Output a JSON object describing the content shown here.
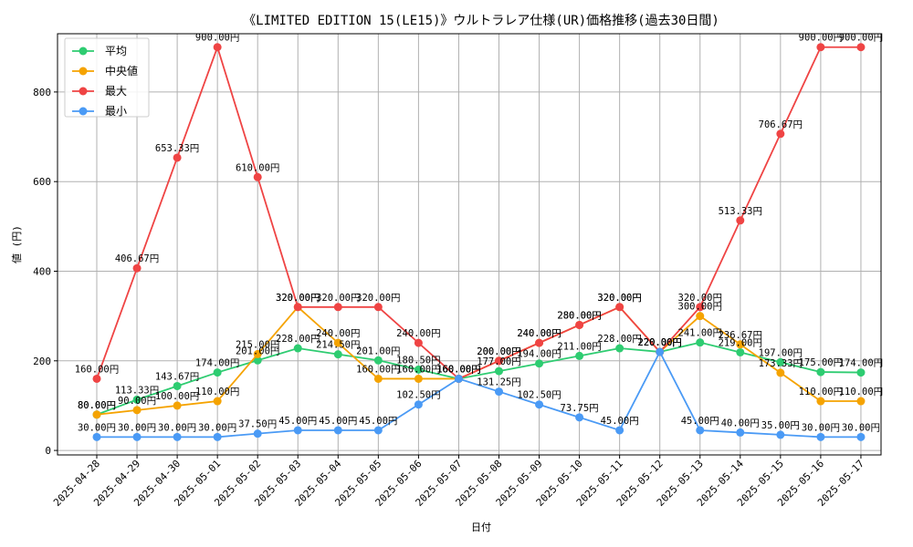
{
  "chart_data": {
    "type": "line",
    "title": "《LIMITED EDITION 15(LE15)》ウルトラレア仕様(UR)価格推移(過去30日間)",
    "xlabel": "日付",
    "ylabel": "値 (円)",
    "ylim": [
      -10,
      930
    ],
    "yticks": [
      0,
      200,
      400,
      600,
      800
    ],
    "grid": true,
    "legend_position": "top-left",
    "categories": [
      "2025-04-28",
      "2025-04-29",
      "2025-04-30",
      "2025-05-01",
      "2025-05-02",
      "2025-05-03",
      "2025-05-04",
      "2025-05-05",
      "2025-05-06",
      "2025-05-07",
      "2025-05-08",
      "2025-05-09",
      "2025-05-10",
      "2025-05-11",
      "2025-05-12",
      "2025-05-13",
      "2025-05-14",
      "2025-05-15",
      "2025-05-16",
      "2025-05-17"
    ],
    "series": [
      {
        "name": "平均",
        "color": "#2ecc71",
        "values": [
          80.0,
          113.33,
          143.67,
          174.0,
          201.0,
          228.0,
          214.5,
          201.0,
          180.5,
          160.0,
          177.0,
          194.0,
          211.0,
          228.0,
          220.0,
          241.0,
          219.0,
          197.0,
          175.0,
          174.0
        ],
        "labels": [
          "80.00円",
          "113.33円",
          "143.67円",
          "174.00円",
          "201.00円",
          "228.00円",
          "214.50円",
          "201.00円",
          "180.50円",
          "160.00円",
          "177.00円",
          "194.00円",
          "211.00円",
          "228.00円",
          "220.00円",
          "241.00円",
          "219.00円",
          "197.00円",
          "175.00円",
          "174.00円"
        ]
      },
      {
        "name": "中央値",
        "color": "#f5a300",
        "values": [
          80.0,
          90.0,
          100.0,
          110.0,
          215.0,
          320.0,
          240.0,
          160.0,
          160.0,
          160.0,
          200.0,
          240.0,
          280.0,
          320.0,
          220.0,
          300.0,
          236.67,
          173.33,
          110.0,
          110.0
        ],
        "labels": [
          "80.00円",
          "90.00円",
          "100.00円",
          "110.00円",
          "215.00円",
          "320.00円",
          "240.00円",
          "160.00円",
          "160.00円",
          "160.00円",
          "200.00円",
          "240.00円",
          "280.00円",
          "320.00円",
          "220.00円",
          "300.00円",
          "236.67円",
          "173.33円",
          "110.00円",
          "110.00円"
        ]
      },
      {
        "name": "最大",
        "color": "#ef4444",
        "values": [
          160.0,
          406.67,
          653.33,
          900.0,
          610.0,
          320.0,
          320.0,
          320.0,
          240.0,
          160.0,
          200.0,
          240.0,
          280.0,
          320.0,
          220.0,
          320.0,
          513.33,
          706.67,
          900.0,
          900.0
        ],
        "labels": [
          "160.00円",
          "406.67円",
          "653.33円",
          "900.00円",
          "610.00円",
          "320.00円",
          "320.00円",
          "320.00円",
          "240.00円",
          "160.00円",
          "200.00円",
          "240.00円",
          "280.00円",
          "320.00円",
          "220.00円",
          "320.00円",
          "513.33円",
          "706.67円",
          "900.00円",
          "900.00円"
        ]
      },
      {
        "name": "最小",
        "color": "#4a9af5",
        "values": [
          30.0,
          30.0,
          30.0,
          30.0,
          37.5,
          45.0,
          45.0,
          45.0,
          102.5,
          160.0,
          131.25,
          102.5,
          73.75,
          45.0,
          220.0,
          45.0,
          40.0,
          35.0,
          30.0,
          30.0
        ],
        "labels": [
          "30.00円",
          "30.00円",
          "30.00円",
          "30.00円",
          "37.50円",
          "45.00円",
          "45.00円",
          "45.00円",
          "102.50円",
          "160.00円",
          "131.25円",
          "102.50円",
          "73.75円",
          "45.00円",
          "220.00円",
          "45.00円",
          "40.00円",
          "35.00円",
          "30.00円",
          "30.00円"
        ]
      }
    ]
  }
}
